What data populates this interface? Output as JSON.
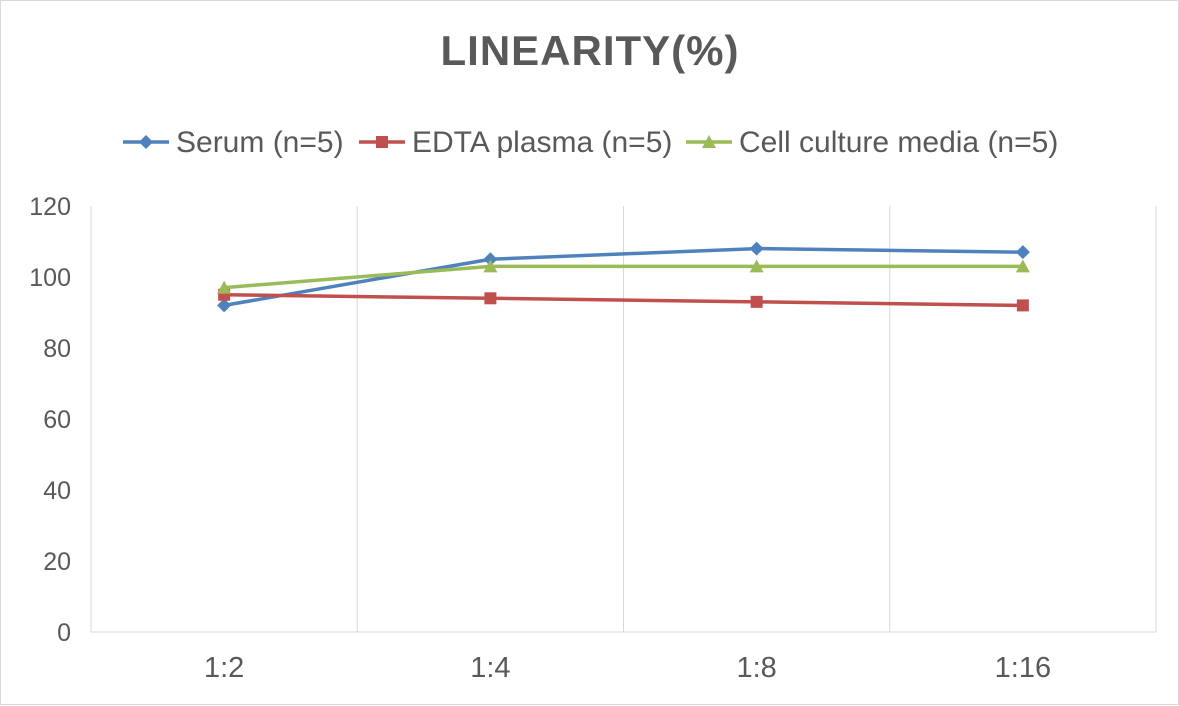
{
  "chart_data": {
    "type": "line",
    "title": "LINEARITY(%)",
    "xlabel": "",
    "ylabel": "",
    "categories": [
      "1:2",
      "1:4",
      "1:8",
      "1:16"
    ],
    "ylim": [
      0,
      120
    ],
    "yticks": [
      0,
      20,
      40,
      60,
      80,
      100,
      120
    ],
    "grid": "vertical",
    "legend_position": "top",
    "series": [
      {
        "name": "Serum (n=5)",
        "values": [
          92,
          105,
          108,
          107
        ],
        "color": "#4f81bd",
        "marker": "diamond"
      },
      {
        "name": "EDTA plasma (n=5)",
        "values": [
          95,
          94,
          93,
          92
        ],
        "color": "#c0504d",
        "marker": "square"
      },
      {
        "name": "Cell culture media (n=5)",
        "values": [
          97,
          103,
          103,
          103
        ],
        "color": "#9bbb59",
        "marker": "triangle"
      }
    ]
  }
}
